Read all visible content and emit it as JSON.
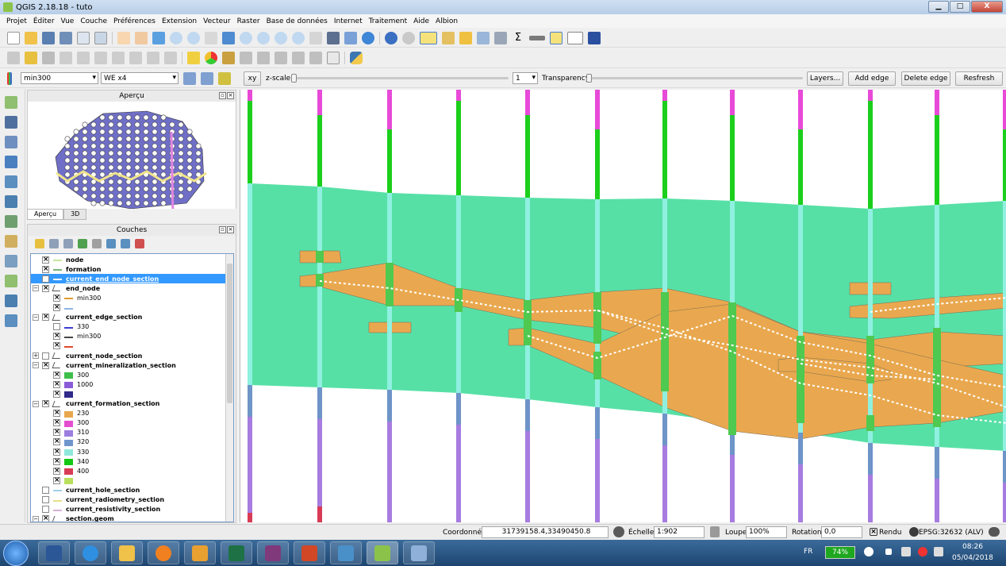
{
  "window": {
    "title": "QGIS 2.18.18 - tuto",
    "min_icon": "minimize-icon",
    "max_icon": "maximize-icon",
    "close_icon": "close-icon",
    "min_glyph": "▁",
    "max_glyph": "□",
    "close_glyph": "X"
  },
  "menu": [
    "Projet",
    "Éditer",
    "Vue",
    "Couche",
    "Préférences",
    "Extension",
    "Vecteur",
    "Raster",
    "Base de données",
    "Internet",
    "Traitement",
    "Aide",
    "Albion"
  ],
  "albion_toolbar": {
    "combo1": "min300",
    "combo2": "WE x4",
    "xy_label": "xy",
    "zscale_label": "z-scale",
    "zscale_value": "1",
    "zscale_fraction": 0.0,
    "transparency_label": "Transparency",
    "transparency_fraction": 0.0,
    "layers_button": "Layers...",
    "add_edge": "Add edge",
    "delete_edge": "Delete edge",
    "refresh": "Resfresh"
  },
  "overview_panel": {
    "title": "Aperçu",
    "tabs": [
      "Aperçu",
      "3D"
    ]
  },
  "layers_panel": {
    "title": "Couches",
    "items": [
      {
        "label": "node",
        "level": 0,
        "checked": true,
        "bold": true,
        "sym": "line",
        "color": "#c8e6a0"
      },
      {
        "label": "formation",
        "level": 0,
        "checked": true,
        "bold": true,
        "sym": "line",
        "color": "#7ab37a"
      },
      {
        "label": "current_end_node_section",
        "level": 0,
        "checked": false,
        "bold": true,
        "sym": "line",
        "color": "#ffffff",
        "selected": true
      },
      {
        "label": "end_node",
        "level": 0,
        "checked": true,
        "bold": true,
        "expander": "−",
        "sym": "vec"
      },
      {
        "label": "min300",
        "level": 1,
        "checked": true,
        "sym": "line",
        "color": "#e39b2e"
      },
      {
        "label": "",
        "level": 1,
        "checked": true,
        "sym": "line",
        "color": "#8ab4e6"
      },
      {
        "label": "current_edge_section",
        "level": 0,
        "checked": true,
        "bold": true,
        "expander": "−",
        "sym": "vec"
      },
      {
        "label": "330",
        "level": 1,
        "checked": false,
        "sym": "line",
        "color": "#3b3bd6"
      },
      {
        "label": "min300",
        "level": 1,
        "checked": true,
        "sym": "dash",
        "color": "#444444"
      },
      {
        "label": "",
        "level": 1,
        "checked": true,
        "sym": "line",
        "color": "#e24a2a"
      },
      {
        "label": "current_node_section",
        "level": 0,
        "checked": false,
        "bold": true,
        "expander": "+",
        "sym": "vec"
      },
      {
        "label": "current_mineralization_section",
        "level": 0,
        "checked": true,
        "bold": true,
        "expander": "−",
        "sym": "vec"
      },
      {
        "label": "300",
        "level": 1,
        "checked": true,
        "sym": "box",
        "color": "#3dbf4a"
      },
      {
        "label": "1000",
        "level": 1,
        "checked": true,
        "sym": "box",
        "color": "#8a5ad8"
      },
      {
        "label": "",
        "level": 1,
        "checked": true,
        "sym": "box",
        "color": "#302a8a"
      },
      {
        "label": "current_formation_section",
        "level": 0,
        "checked": true,
        "bold": true,
        "expander": "−",
        "sym": "vec"
      },
      {
        "label": "230",
        "level": 1,
        "checked": true,
        "sym": "box",
        "color": "#e8a74c"
      },
      {
        "label": "300",
        "level": 1,
        "checked": true,
        "sym": "box",
        "color": "#e44fd0"
      },
      {
        "label": "310",
        "level": 1,
        "checked": true,
        "sym": "box",
        "color": "#9b7fe0"
      },
      {
        "label": "320",
        "level": 1,
        "checked": true,
        "sym": "box",
        "color": "#6f96cc"
      },
      {
        "label": "330",
        "level": 1,
        "checked": true,
        "sym": "box",
        "color": "#8fe8dc"
      },
      {
        "label": "340",
        "level": 1,
        "checked": true,
        "sym": "box",
        "color": "#14c914"
      },
      {
        "label": "400",
        "level": 1,
        "checked": true,
        "sym": "box",
        "color": "#d83b55"
      },
      {
        "label": "",
        "level": 1,
        "checked": true,
        "sym": "box",
        "color": "#b9e05c"
      },
      {
        "label": "current_hole_section",
        "level": 0,
        "checked": false,
        "bold": true,
        "sym": "line",
        "color": "#9fcfe8"
      },
      {
        "label": "current_radiometry_section",
        "level": 0,
        "checked": false,
        "bold": true,
        "sym": "line",
        "color": "#e8e08a"
      },
      {
        "label": "current_resistivity_section",
        "level": 0,
        "checked": false,
        "bold": true,
        "sym": "line",
        "color": "#d8b0d8"
      },
      {
        "label": "section.geom",
        "level": 0,
        "checked": true,
        "bold": true,
        "expander": "−",
        "sym": "vec"
      }
    ]
  },
  "status": {
    "coord_label": "Coordonnée",
    "coord_value": "31739158.4,33490450.8",
    "scale_label": "Échelle",
    "scale_value": "1:902",
    "magnifier_label": "Loupe",
    "magnifier_value": "100%",
    "rotation_label": "Rotation",
    "rotation_value": "0,0",
    "render_label": "Rendu",
    "crs": "EPSG:32632 (ALV)"
  },
  "taskbar": {
    "battery": "74%",
    "lang": "FR",
    "time": "08:26",
    "date": "05/04/2018"
  },
  "colors": {
    "formation_green": "#57e0a6",
    "formation_orange": "#e9a84f",
    "hole_green": "#1ccf1c",
    "hole_magenta": "#e84ad8",
    "hole_blue": "#6e94c8",
    "hole_purple": "#a77ce0",
    "hole_cyan": "#8ff0e0",
    "mineral_green": "#4fc94f"
  }
}
